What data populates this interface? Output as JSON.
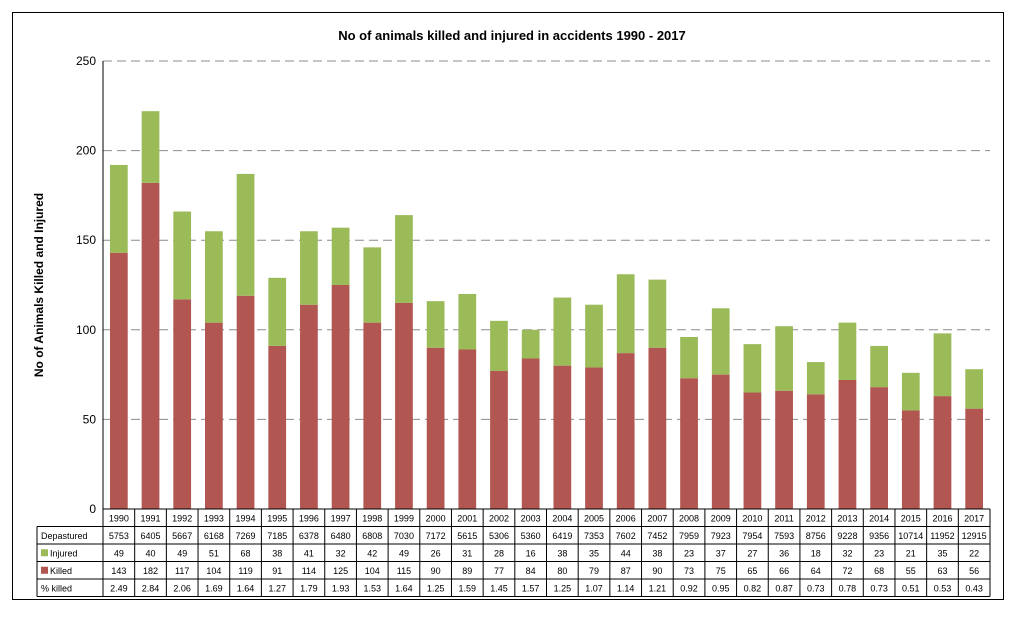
{
  "chart_data": {
    "type": "bar",
    "stacked": true,
    "title": "No of animals killed and injured in accidents 1990 - 2017",
    "ylabel": "No of Animals Killed and Injured",
    "xlabel": "",
    "ylim": [
      0,
      250
    ],
    "yticks": [
      "0",
      "50",
      "100",
      "150",
      "200",
      "250"
    ],
    "grid": true,
    "legend": "table",
    "categories": [
      "1990",
      "1991",
      "1992",
      "1993",
      "1994",
      "1995",
      "1996",
      "1997",
      "1998",
      "1999",
      "2000",
      "2001",
      "2002",
      "2003",
      "2004",
      "2005",
      "2006",
      "2007",
      "2008",
      "2009",
      "2010",
      "2011",
      "2012",
      "2013",
      "2014",
      "2015",
      "2016",
      "2017"
    ],
    "series": [
      {
        "name": "Killed",
        "color": "#b25651",
        "values": [
          143,
          182,
          117,
          104,
          119,
          91,
          114,
          125,
          104,
          115,
          90,
          89,
          77,
          84,
          80,
          79,
          87,
          90,
          73,
          75,
          65,
          66,
          64,
          72,
          68,
          55,
          63,
          56
        ]
      },
      {
        "name": "Injured",
        "color": "#9bbb59",
        "values": [
          49,
          40,
          49,
          51,
          68,
          38,
          41,
          32,
          42,
          49,
          26,
          31,
          28,
          16,
          38,
          35,
          44,
          38,
          23,
          37,
          27,
          36,
          18,
          32,
          23,
          21,
          35,
          22
        ]
      }
    ],
    "table": {
      "rows": [
        {
          "label": "Depastured",
          "swatch": "",
          "values": [
            "5753",
            "6405",
            "5667",
            "6168",
            "7269",
            "7185",
            "6378",
            "6480",
            "6808",
            "7030",
            "7172",
            "5615",
            "5306",
            "5360",
            "6419",
            "7353",
            "7602",
            "7452",
            "7959",
            "7923",
            "7954",
            "7593",
            "8756",
            "9228",
            "9356",
            "10714",
            "11952",
            "12915"
          ]
        },
        {
          "label": "Injured",
          "swatch": "#9bbb59",
          "values": [
            "49",
            "40",
            "49",
            "51",
            "68",
            "38",
            "41",
            "32",
            "42",
            "49",
            "26",
            "31",
            "28",
            "16",
            "38",
            "35",
            "44",
            "38",
            "23",
            "37",
            "27",
            "36",
            "18",
            "32",
            "23",
            "21",
            "35",
            "22"
          ]
        },
        {
          "label": "Killed",
          "swatch": "#b25651",
          "values": [
            "143",
            "182",
            "117",
            "104",
            "119",
            "91",
            "114",
            "125",
            "104",
            "115",
            "90",
            "89",
            "77",
            "84",
            "80",
            "79",
            "87",
            "90",
            "73",
            "75",
            "65",
            "66",
            "64",
            "72",
            "68",
            "55",
            "63",
            "56"
          ]
        },
        {
          "label": "% killed",
          "swatch": "",
          "values": [
            "2.49",
            "2.84",
            "2.06",
            "1.69",
            "1.64",
            "1.27",
            "1.79",
            "1.93",
            "1.53",
            "1.64",
            "1.25",
            "1.59",
            "1.45",
            "1.57",
            "1.25",
            "1.07",
            "1.14",
            "1.21",
            "0.92",
            "0.95",
            "0.82",
            "0.87",
            "0.73",
            "0.78",
            "0.73",
            "0.51",
            "0.53",
            "0.43"
          ]
        }
      ]
    }
  }
}
